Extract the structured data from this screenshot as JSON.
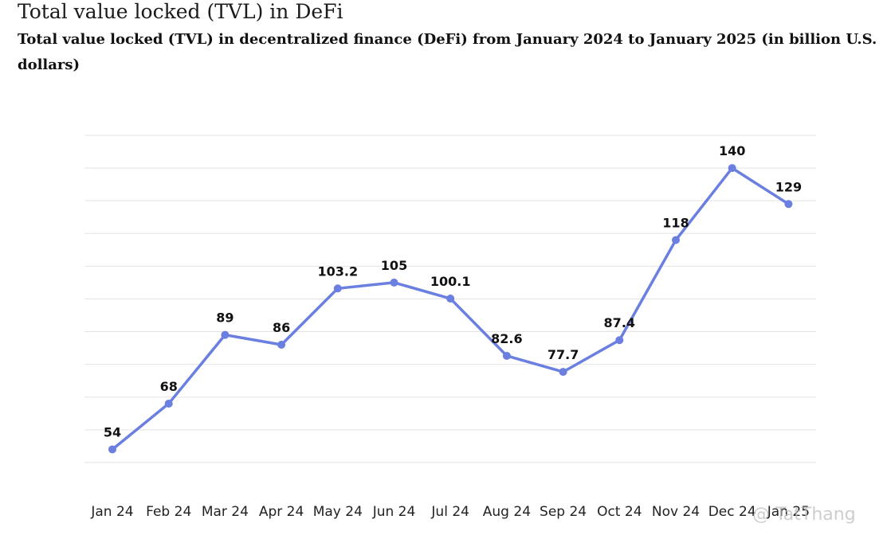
{
  "chart_data": {
    "type": "line",
    "title": "Total value locked (TVL) in DeFi",
    "subtitle": "Total value locked (TVL) in decentralized finance (DeFi) from January 2024 to January 2025 (in billion U.S. dollars)",
    "categories": [
      "Jan 24",
      "Feb 24",
      "Mar 24",
      "Apr 24",
      "May 24",
      "Jun 24",
      "Jul 24",
      "Aug 24",
      "Sep 24",
      "Oct 24",
      "Nov 24",
      "Dec 24",
      "Jan 25"
    ],
    "values": [
      54,
      68,
      89,
      86,
      103.2,
      105,
      100.1,
      82.6,
      77.7,
      87.4,
      118,
      140,
      129
    ],
    "data_labels": [
      "54",
      "68",
      "89",
      "86",
      "103.2",
      "105",
      "100.1",
      "82.6",
      "77.7",
      "87.4",
      "118",
      "140",
      "129"
    ],
    "ylim": [
      40,
      150
    ],
    "y_gridlines": [
      50,
      60,
      70,
      80,
      90,
      100,
      110,
      120,
      130,
      140,
      150
    ],
    "y_axis_labels_shown": false,
    "grid": true,
    "line_color": "#6a7fe0",
    "grid_color": "#e3e3e3"
  },
  "watermark": "@ TatThang"
}
